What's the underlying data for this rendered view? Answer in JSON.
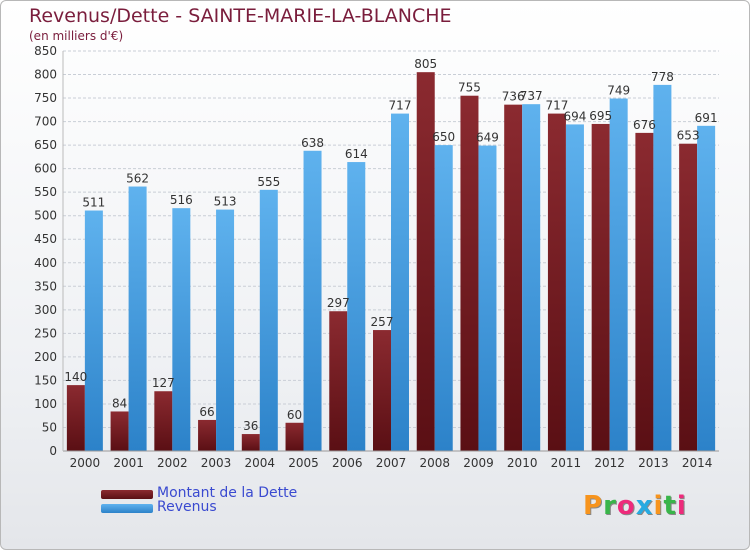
{
  "header": {
    "title": "Revenus/Dette - SAINTE-MARIE-LA-BLANCHE",
    "subtitle": "(en milliers d'€)"
  },
  "legend": {
    "items": [
      "Montant de la Dette",
      "Revenus"
    ]
  },
  "logo": {
    "text": "Proxiti",
    "colors": [
      "#f7941d",
      "#39b54a",
      "#ee2a7b",
      "#27aae1",
      "#f7941d",
      "#39b54a",
      "#ee2a7b"
    ]
  },
  "colors": {
    "dette": "#7b1a1f",
    "revenus": "#3d9be0",
    "grid": "#c9ced6"
  },
  "chart_data": {
    "type": "bar",
    "categories": [
      "2000",
      "2001",
      "2002",
      "2003",
      "2004",
      "2005",
      "2006",
      "2007",
      "2008",
      "2009",
      "2010",
      "2011",
      "2012",
      "2013",
      "2014"
    ],
    "series": [
      {
        "name": "Montant de la Dette",
        "values": [
          140,
          84,
          127,
          66,
          36,
          60,
          297,
          257,
          805,
          755,
          736,
          717,
          695,
          676,
          653
        ]
      },
      {
        "name": "Revenus",
        "values": [
          511,
          562,
          516,
          513,
          555,
          638,
          614,
          717,
          650,
          649,
          737,
          694,
          749,
          778,
          691
        ]
      }
    ],
    "ylim": [
      0,
      850
    ],
    "yticks": [
      0,
      50,
      100,
      150,
      200,
      250,
      300,
      350,
      400,
      450,
      500,
      550,
      600,
      650,
      700,
      750,
      800,
      850
    ],
    "grid": true
  }
}
